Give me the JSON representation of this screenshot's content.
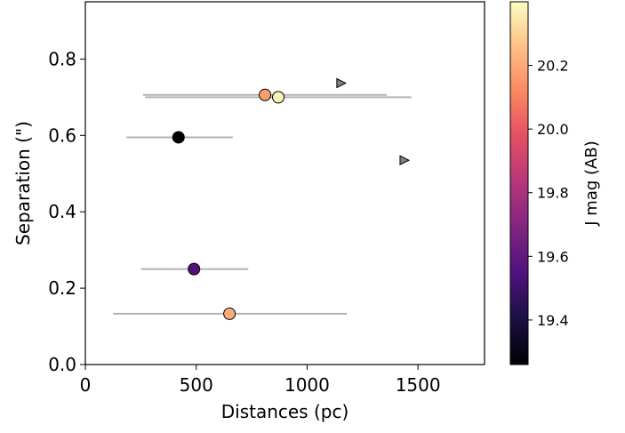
{
  "chart_data": {
    "type": "scatter",
    "title": "",
    "xlabel": "Distances (pc)",
    "ylabel": "Separation (\")",
    "xlim": [
      0,
      1800
    ],
    "ylim": [
      0,
      0.95
    ],
    "xticks": [
      0,
      500,
      1000,
      1500
    ],
    "yticks": [
      0.0,
      0.2,
      0.4,
      0.6,
      0.8
    ],
    "xtick_labels": [
      "0",
      "500",
      "1000",
      "1500"
    ],
    "ytick_labels": [
      "0.0",
      "0.2",
      "0.4",
      "0.6",
      "0.8"
    ],
    "grid": false,
    "colorbar": {
      "label": "J mag (AB)",
      "range": [
        19.26,
        20.4
      ],
      "ticks": [
        19.4,
        19.6,
        19.8,
        20.0,
        20.2
      ],
      "tick_labels": [
        "19.4",
        "19.6",
        "19.8",
        "20.0",
        "20.2"
      ],
      "colormap": "magma"
    },
    "points": [
      {
        "x": 420,
        "y": 0.595,
        "xerr_low": 185,
        "xerr_high": 665,
        "jmag": 19.27,
        "color": "#000004"
      },
      {
        "x": 490,
        "y": 0.25,
        "xerr_low": 250,
        "xerr_high": 735,
        "jmag": 19.58,
        "color": "#51127c"
      },
      {
        "x": 650,
        "y": 0.133,
        "xerr_low": 125,
        "xerr_high": 1180,
        "jmag": 20.25,
        "color": "#fdae78"
      },
      {
        "x": 810,
        "y": 0.706,
        "xerr_low": 260,
        "xerr_high": 1360,
        "jmag": 20.18,
        "color": "#fc9f6e"
      },
      {
        "x": 870,
        "y": 0.7,
        "xerr_low": 270,
        "xerr_high": 1470,
        "jmag": 20.37,
        "color": "#fcf5b8"
      }
    ],
    "lower_limits": [
      {
        "x": 1150,
        "y": 0.737,
        "marker": "triangle-right",
        "color": "#808080"
      },
      {
        "x": 1435,
        "y": 0.535,
        "marker": "triangle-right",
        "color": "#808080"
      }
    ]
  }
}
